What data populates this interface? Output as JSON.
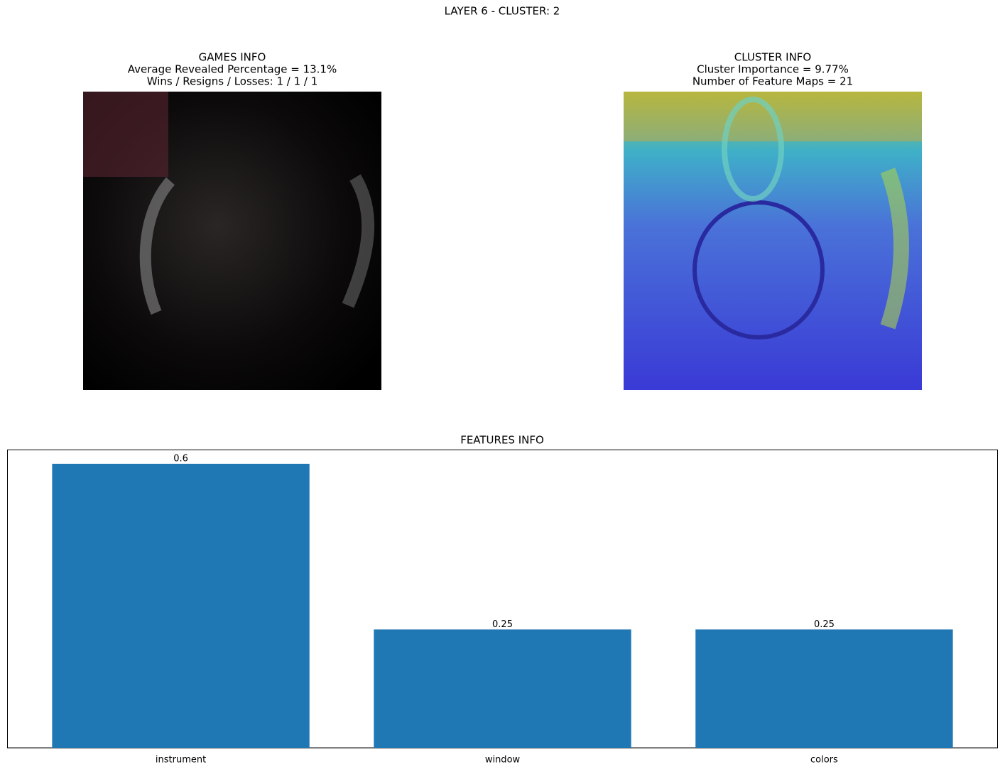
{
  "title": "LAYER 6 - CLUSTER: 2",
  "panels": [
    {
      "lines": [
        "GAMES INFO",
        "Average Revealed Percentage = 13.1%",
        "Wins / Resigns / Losses: 1 / 1 / 1"
      ]
    },
    {
      "lines": [
        "CLUSTER INFO",
        "Cluster Importance = 9.77%",
        "Number of Feature Maps = 21"
      ]
    }
  ],
  "chart_data": {
    "type": "bar",
    "title": "FEATURES INFO",
    "categories": [
      "instrument",
      "window",
      "colors"
    ],
    "values": [
      0.6,
      0.25,
      0.25
    ],
    "color": "#1f77b4",
    "ylim": [
      0,
      0.63
    ]
  }
}
